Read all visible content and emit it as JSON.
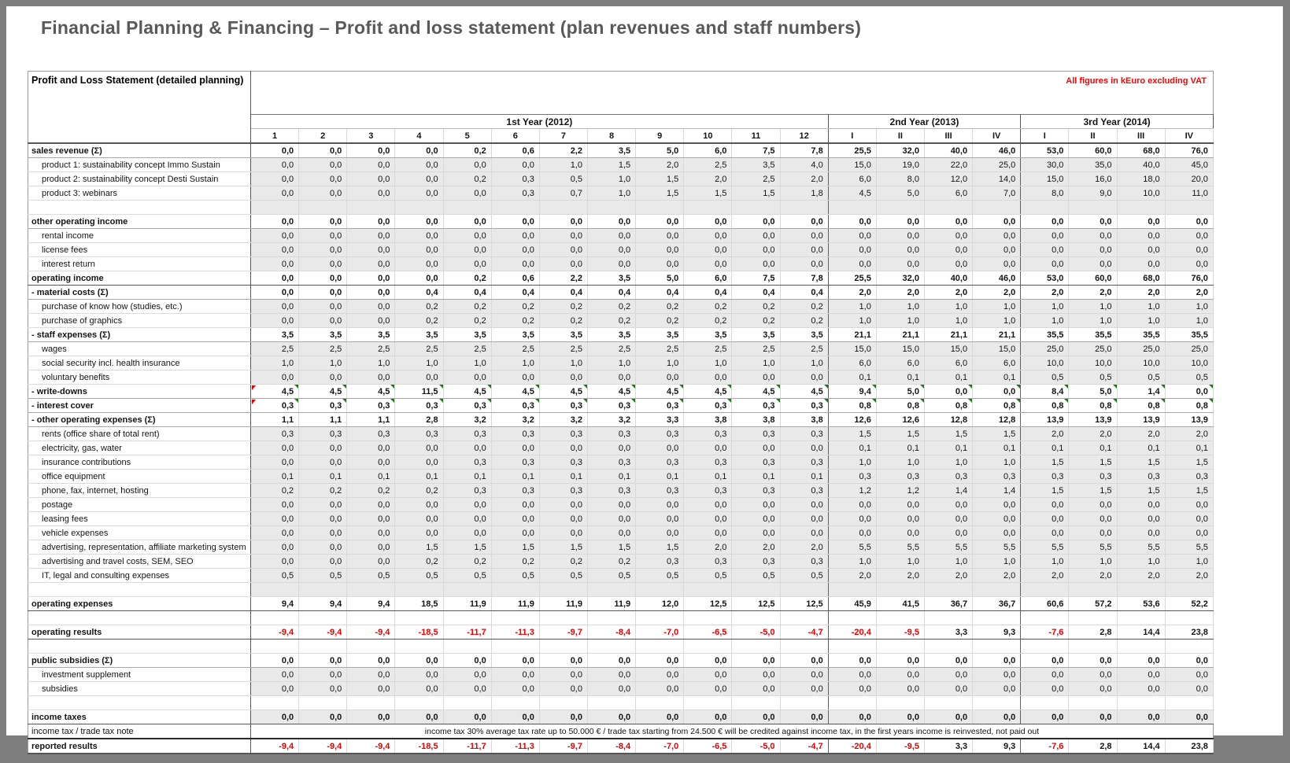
{
  "page": {
    "title": "Financial Planning & Financing – Profit and loss statement (plan revenues and staff numbers)",
    "sheet_title": "Profit and Loss Statement (detailed planning)",
    "units_note": "All figures in kEuro excluding VAT"
  },
  "columns": {
    "year_groups": [
      {
        "label": "1st Year (2012)",
        "span": 12
      },
      {
        "label": "2nd Year (2013)",
        "span": 4
      },
      {
        "label": "3rd Year (2014)",
        "span": 4
      }
    ],
    "headers": [
      "1",
      "2",
      "3",
      "4",
      "5",
      "6",
      "7",
      "8",
      "9",
      "10",
      "11",
      "12",
      "I",
      "II",
      "III",
      "IV",
      "I",
      "II",
      "III",
      "IV"
    ]
  },
  "rows": [
    {
      "label": "sales revenue (Σ)",
      "type": "total",
      "values": [
        "0,0",
        "0,0",
        "0,0",
        "0,0",
        "0,2",
        "0,6",
        "2,2",
        "3,5",
        "5,0",
        "6,0",
        "7,5",
        "7,8",
        "25,5",
        "32,0",
        "40,0",
        "46,0",
        "53,0",
        "60,0",
        "68,0",
        "76,0"
      ]
    },
    {
      "label": "product 1: sustainability concept Immo Sustain",
      "type": "sub",
      "values": [
        "0,0",
        "0,0",
        "0,0",
        "0,0",
        "0,0",
        "0,0",
        "1,0",
        "1,5",
        "2,0",
        "2,5",
        "3,5",
        "4,0",
        "15,0",
        "19,0",
        "22,0",
        "25,0",
        "30,0",
        "35,0",
        "40,0",
        "45,0"
      ]
    },
    {
      "label": "product 2: sustainability concept Desti Sustain",
      "type": "sub",
      "values": [
        "0,0",
        "0,0",
        "0,0",
        "0,0",
        "0,2",
        "0,3",
        "0,5",
        "1,0",
        "1,5",
        "2,0",
        "2,5",
        "2,0",
        "6,0",
        "8,0",
        "12,0",
        "14,0",
        "15,0",
        "16,0",
        "18,0",
        "20,0"
      ]
    },
    {
      "label": "product 3: webinars",
      "type": "sub",
      "values": [
        "0,0",
        "0,0",
        "0,0",
        "0,0",
        "0,0",
        "0,3",
        "0,7",
        "1,0",
        "1,5",
        "1,5",
        "1,5",
        "1,8",
        "4,5",
        "5,0",
        "6,0",
        "7,0",
        "8,0",
        "9,0",
        "10,0",
        "11,0"
      ]
    },
    {
      "label": "",
      "type": "spacer",
      "bg": "gray"
    },
    {
      "label": "other operating income",
      "type": "total",
      "values": [
        "0,0",
        "0,0",
        "0,0",
        "0,0",
        "0,0",
        "0,0",
        "0,0",
        "0,0",
        "0,0",
        "0,0",
        "0,0",
        "0,0",
        "0,0",
        "0,0",
        "0,0",
        "0,0",
        "0,0",
        "0,0",
        "0,0",
        "0,0"
      ]
    },
    {
      "label": "rental income",
      "type": "sub",
      "values": [
        "0,0",
        "0,0",
        "0,0",
        "0,0",
        "0,0",
        "0,0",
        "0,0",
        "0,0",
        "0,0",
        "0,0",
        "0,0",
        "0,0",
        "0,0",
        "0,0",
        "0,0",
        "0,0",
        "0,0",
        "0,0",
        "0,0",
        "0,0"
      ]
    },
    {
      "label": "license fees",
      "type": "sub",
      "values": [
        "0,0",
        "0,0",
        "0,0",
        "0,0",
        "0,0",
        "0,0",
        "0,0",
        "0,0",
        "0,0",
        "0,0",
        "0,0",
        "0,0",
        "0,0",
        "0,0",
        "0,0",
        "0,0",
        "0,0",
        "0,0",
        "0,0",
        "0,0"
      ]
    },
    {
      "label": "interest return",
      "type": "sub",
      "values": [
        "0,0",
        "0,0",
        "0,0",
        "0,0",
        "0,0",
        "0,0",
        "0,0",
        "0,0",
        "0,0",
        "0,0",
        "0,0",
        "0,0",
        "0,0",
        "0,0",
        "0,0",
        "0,0",
        "0,0",
        "0,0",
        "0,0",
        "0,0"
      ]
    },
    {
      "label": "operating income",
      "type": "summary",
      "values": [
        "0,0",
        "0,0",
        "0,0",
        "0,0",
        "0,2",
        "0,6",
        "2,2",
        "3,5",
        "5,0",
        "6,0",
        "7,5",
        "7,8",
        "25,5",
        "32,0",
        "40,0",
        "46,0",
        "53,0",
        "60,0",
        "68,0",
        "76,0"
      ]
    },
    {
      "label": "- material costs (Σ)",
      "type": "total",
      "values": [
        "0,0",
        "0,0",
        "0,0",
        "0,4",
        "0,4",
        "0,4",
        "0,4",
        "0,4",
        "0,4",
        "0,4",
        "0,4",
        "0,4",
        "2,0",
        "2,0",
        "2,0",
        "2,0",
        "2,0",
        "2,0",
        "2,0",
        "2,0"
      ]
    },
    {
      "label": "purchase of know how (studies, etc.)",
      "type": "sub",
      "values": [
        "0,0",
        "0,0",
        "0,0",
        "0,2",
        "0,2",
        "0,2",
        "0,2",
        "0,2",
        "0,2",
        "0,2",
        "0,2",
        "0,2",
        "1,0",
        "1,0",
        "1,0",
        "1,0",
        "1,0",
        "1,0",
        "1,0",
        "1,0"
      ]
    },
    {
      "label": "purchase of graphics",
      "type": "sub",
      "values": [
        "0,0",
        "0,0",
        "0,0",
        "0,2",
        "0,2",
        "0,2",
        "0,2",
        "0,2",
        "0,2",
        "0,2",
        "0,2",
        "0,2",
        "1,0",
        "1,0",
        "1,0",
        "1,0",
        "1,0",
        "1,0",
        "1,0",
        "1,0"
      ]
    },
    {
      "label": "- staff expenses (Σ)",
      "type": "total",
      "values": [
        "3,5",
        "3,5",
        "3,5",
        "3,5",
        "3,5",
        "3,5",
        "3,5",
        "3,5",
        "3,5",
        "3,5",
        "3,5",
        "3,5",
        "21,1",
        "21,1",
        "21,1",
        "21,1",
        "35,5",
        "35,5",
        "35,5",
        "35,5"
      ]
    },
    {
      "label": "wages",
      "type": "sub",
      "values": [
        "2,5",
        "2,5",
        "2,5",
        "2,5",
        "2,5",
        "2,5",
        "2,5",
        "2,5",
        "2,5",
        "2,5",
        "2,5",
        "2,5",
        "15,0",
        "15,0",
        "15,0",
        "15,0",
        "25,0",
        "25,0",
        "25,0",
        "25,0"
      ]
    },
    {
      "label": "social security incl. health insurance",
      "type": "sub",
      "values": [
        "1,0",
        "1,0",
        "1,0",
        "1,0",
        "1,0",
        "1,0",
        "1,0",
        "1,0",
        "1,0",
        "1,0",
        "1,0",
        "1,0",
        "6,0",
        "6,0",
        "6,0",
        "6,0",
        "10,0",
        "10,0",
        "10,0",
        "10,0"
      ]
    },
    {
      "label": "voluntary benefits",
      "type": "sub",
      "values": [
        "0,0",
        "0,0",
        "0,0",
        "0,0",
        "0,0",
        "0,0",
        "0,0",
        "0,0",
        "0,0",
        "0,0",
        "0,0",
        "0,0",
        "0,1",
        "0,1",
        "0,1",
        "0,1",
        "0,5",
        "0,5",
        "0,5",
        "0,5"
      ]
    },
    {
      "label": "- write-downs",
      "type": "total",
      "comment": true,
      "values": [
        "4,5",
        "4,5",
        "4,5",
        "11,5",
        "4,5",
        "4,5",
        "4,5",
        "4,5",
        "4,5",
        "4,5",
        "4,5",
        "4,5",
        "9,4",
        "5,0",
        "0,0",
        "0,0",
        "8,4",
        "5,0",
        "1,4",
        "0,0"
      ]
    },
    {
      "label": "- interest cover",
      "type": "total",
      "comment": true,
      "values": [
        "0,3",
        "0,3",
        "0,3",
        "0,3",
        "0,3",
        "0,3",
        "0,3",
        "0,3",
        "0,3",
        "0,3",
        "0,3",
        "0,3",
        "0,8",
        "0,8",
        "0,8",
        "0,8",
        "0,8",
        "0,8",
        "0,8",
        "0,8"
      ]
    },
    {
      "label": "- other operating expenses (Σ)",
      "type": "total",
      "values": [
        "1,1",
        "1,1",
        "1,1",
        "2,8",
        "3,2",
        "3,2",
        "3,2",
        "3,2",
        "3,3",
        "3,8",
        "3,8",
        "3,8",
        "12,6",
        "12,6",
        "12,8",
        "12,8",
        "13,9",
        "13,9",
        "13,9",
        "13,9"
      ]
    },
    {
      "label": "rents (office share of total rent)",
      "type": "sub",
      "values": [
        "0,3",
        "0,3",
        "0,3",
        "0,3",
        "0,3",
        "0,3",
        "0,3",
        "0,3",
        "0,3",
        "0,3",
        "0,3",
        "0,3",
        "1,5",
        "1,5",
        "1,5",
        "1,5",
        "2,0",
        "2,0",
        "2,0",
        "2,0"
      ]
    },
    {
      "label": "electricity, gas, water",
      "type": "sub",
      "values": [
        "0,0",
        "0,0",
        "0,0",
        "0,0",
        "0,0",
        "0,0",
        "0,0",
        "0,0",
        "0,0",
        "0,0",
        "0,0",
        "0,0",
        "0,1",
        "0,1",
        "0,1",
        "0,1",
        "0,1",
        "0,1",
        "0,1",
        "0,1"
      ]
    },
    {
      "label": "insurance contributions",
      "type": "sub",
      "values": [
        "0,0",
        "0,0",
        "0,0",
        "0,0",
        "0,3",
        "0,3",
        "0,3",
        "0,3",
        "0,3",
        "0,3",
        "0,3",
        "0,3",
        "1,0",
        "1,0",
        "1,0",
        "1,0",
        "1,5",
        "1,5",
        "1,5",
        "1,5"
      ]
    },
    {
      "label": "office equipment",
      "type": "sub",
      "values": [
        "0,1",
        "0,1",
        "0,1",
        "0,1",
        "0,1",
        "0,1",
        "0,1",
        "0,1",
        "0,1",
        "0,1",
        "0,1",
        "0,1",
        "0,3",
        "0,3",
        "0,3",
        "0,3",
        "0,3",
        "0,3",
        "0,3",
        "0,3"
      ]
    },
    {
      "label": "phone, fax, internet, hosting",
      "type": "sub",
      "values": [
        "0,2",
        "0,2",
        "0,2",
        "0,2",
        "0,3",
        "0,3",
        "0,3",
        "0,3",
        "0,3",
        "0,3",
        "0,3",
        "0,3",
        "1,2",
        "1,2",
        "1,4",
        "1,4",
        "1,5",
        "1,5",
        "1,5",
        "1,5"
      ]
    },
    {
      "label": "postage",
      "type": "sub",
      "values": [
        "0,0",
        "0,0",
        "0,0",
        "0,0",
        "0,0",
        "0,0",
        "0,0",
        "0,0",
        "0,0",
        "0,0",
        "0,0",
        "0,0",
        "0,0",
        "0,0",
        "0,0",
        "0,0",
        "0,0",
        "0,0",
        "0,0",
        "0,0"
      ]
    },
    {
      "label": "leasing fees",
      "type": "sub",
      "values": [
        "0,0",
        "0,0",
        "0,0",
        "0,0",
        "0,0",
        "0,0",
        "0,0",
        "0,0",
        "0,0",
        "0,0",
        "0,0",
        "0,0",
        "0,0",
        "0,0",
        "0,0",
        "0,0",
        "0,0",
        "0,0",
        "0,0",
        "0,0"
      ]
    },
    {
      "label": "vehicle expenses",
      "type": "sub",
      "values": [
        "0,0",
        "0,0",
        "0,0",
        "0,0",
        "0,0",
        "0,0",
        "0,0",
        "0,0",
        "0,0",
        "0,0",
        "0,0",
        "0,0",
        "0,0",
        "0,0",
        "0,0",
        "0,0",
        "0,0",
        "0,0",
        "0,0",
        "0,0"
      ]
    },
    {
      "label": "advertising, representation, affiliate marketing system",
      "type": "sub",
      "values": [
        "0,0",
        "0,0",
        "0,0",
        "1,5",
        "1,5",
        "1,5",
        "1,5",
        "1,5",
        "1,5",
        "2,0",
        "2,0",
        "2,0",
        "5,5",
        "5,5",
        "5,5",
        "5,5",
        "5,5",
        "5,5",
        "5,5",
        "5,5"
      ]
    },
    {
      "label": "advertising and travel costs, SEM, SEO",
      "type": "sub",
      "values": [
        "0,0",
        "0,0",
        "0,0",
        "0,2",
        "0,2",
        "0,2",
        "0,2",
        "0,2",
        "0,3",
        "0,3",
        "0,3",
        "0,3",
        "1,0",
        "1,0",
        "1,0",
        "1,0",
        "1,0",
        "1,0",
        "1,0",
        "1,0"
      ]
    },
    {
      "label": "IT, legal and consulting expenses",
      "type": "sub",
      "values": [
        "0,5",
        "0,5",
        "0,5",
        "0,5",
        "0,5",
        "0,5",
        "0,5",
        "0,5",
        "0,5",
        "0,5",
        "0,5",
        "0,5",
        "2,0",
        "2,0",
        "2,0",
        "2,0",
        "2,0",
        "2,0",
        "2,0",
        "2,0"
      ]
    },
    {
      "label": "",
      "type": "spacer",
      "bg": "gray"
    },
    {
      "label": "operating expenses",
      "type": "summary",
      "values": [
        "9,4",
        "9,4",
        "9,4",
        "18,5",
        "11,9",
        "11,9",
        "11,9",
        "11,9",
        "12,0",
        "12,5",
        "12,5",
        "12,5",
        "45,9",
        "41,5",
        "36,7",
        "36,7",
        "60,6",
        "57,2",
        "53,6",
        "52,2"
      ]
    },
    {
      "label": "",
      "type": "spacer",
      "bg": "white"
    },
    {
      "label": "operating results",
      "type": "result",
      "values": [
        "-9,4",
        "-9,4",
        "-9,4",
        "-18,5",
        "-11,7",
        "-11,3",
        "-9,7",
        "-8,4",
        "-7,0",
        "-6,5",
        "-5,0",
        "-4,7",
        "-20,4",
        "-9,5",
        "3,3",
        "9,3",
        "-7,6",
        "2,8",
        "14,4",
        "23,8"
      ]
    },
    {
      "label": "",
      "type": "spacer",
      "bg": "white"
    },
    {
      "label": "public subsidies (Σ)",
      "type": "total",
      "values": [
        "0,0",
        "0,0",
        "0,0",
        "0,0",
        "0,0",
        "0,0",
        "0,0",
        "0,0",
        "0,0",
        "0,0",
        "0,0",
        "0,0",
        "0,0",
        "0,0",
        "0,0",
        "0,0",
        "0,0",
        "0,0",
        "0,0",
        "0,0"
      ]
    },
    {
      "label": "investment supplement",
      "type": "sub",
      "values": [
        "0,0",
        "0,0",
        "0,0",
        "0,0",
        "0,0",
        "0,0",
        "0,0",
        "0,0",
        "0,0",
        "0,0",
        "0,0",
        "0,0",
        "0,0",
        "0,0",
        "0,0",
        "0,0",
        "0,0",
        "0,0",
        "0,0",
        "0,0"
      ]
    },
    {
      "label": "subsidies",
      "type": "sub",
      "values": [
        "0,0",
        "0,0",
        "0,0",
        "0,0",
        "0,0",
        "0,0",
        "0,0",
        "0,0",
        "0,0",
        "0,0",
        "0,0",
        "0,0",
        "0,0",
        "0,0",
        "0,0",
        "0,0",
        "0,0",
        "0,0",
        "0,0",
        "0,0"
      ]
    },
    {
      "label": "",
      "type": "spacer",
      "bg": "white"
    },
    {
      "label": "income taxes",
      "type": "summary",
      "bg": "gray",
      "values": [
        "0,0",
        "0,0",
        "0,0",
        "0,0",
        "0,0",
        "0,0",
        "0,0",
        "0,0",
        "0,0",
        "0,0",
        "0,0",
        "0,0",
        "0,0",
        "0,0",
        "0,0",
        "0,0",
        "0,0",
        "0,0",
        "0,0",
        "0,0"
      ]
    },
    {
      "label": "income tax / trade tax note",
      "type": "note",
      "note": "income tax 30%  average tax rate up to 50.000 € / trade tax starting from 24.500 € will be credited against income tax, in the first years income is reinvested, not paid out"
    },
    {
      "label": "reported results",
      "type": "result",
      "thick_top": true,
      "values": [
        "-9,4",
        "-9,4",
        "-9,4",
        "-18,5",
        "-11,7",
        "-11,3",
        "-9,7",
        "-8,4",
        "-7,0",
        "-6,5",
        "-5,0",
        "-4,7",
        "-20,4",
        "-9,5",
        "3,3",
        "9,3",
        "-7,6",
        "2,8",
        "14,4",
        "23,8"
      ]
    }
  ],
  "colors": {
    "accent_red": "#ff0000",
    "negative_value": "#e60000",
    "subrow_bg": "#e9e9e9",
    "title_gray": "#595959",
    "comment_marker_green": "#1f7a1f"
  }
}
